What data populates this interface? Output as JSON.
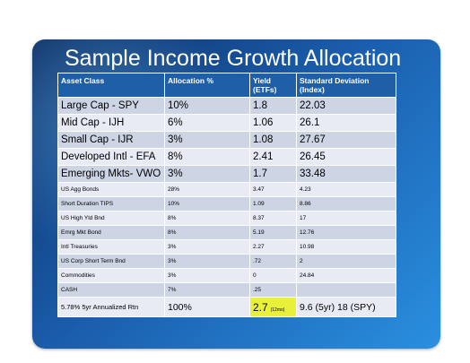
{
  "title": "Sample Income Growth Allocation",
  "headers": {
    "asset": "Asset Class",
    "allocation": "Allocation %",
    "yield": "Yield\n(ETFs)",
    "stddev": "Standard Deviation\n(Index)"
  },
  "rows": [
    {
      "asset": "Large Cap - SPY",
      "allocation": "10%",
      "yield": "1.8",
      "stddev": "22.03"
    },
    {
      "asset": "Mid Cap - IJH",
      "allocation": "6%",
      "yield": "1.06",
      "stddev": "26.1"
    },
    {
      "asset": "Small Cap - IJR",
      "allocation": "3%",
      "yield": "1.08",
      "stddev": "27.67"
    },
    {
      "asset": "Developed Intl - EFA",
      "allocation": "8%",
      "yield": "2.41",
      "stddev": "26.45"
    },
    {
      "asset": "Emerging Mkts- VWO",
      "allocation": "3%",
      "yield": "1.7",
      "stddev": "33.48"
    },
    {
      "asset": "US Agg Bonds",
      "allocation": "28%",
      "yield": "3.47",
      "stddev": "4.23"
    },
    {
      "asset": "Short Duration TIPS",
      "allocation": "10%",
      "yield": "1.09",
      "stddev": "8.86"
    },
    {
      "asset": "US High Yld Bnd",
      "allocation": "8%",
      "yield": "8.37",
      "stddev": "17"
    },
    {
      "asset": "Emrg Mkt Bond",
      "allocation": "8%",
      "yield": "5.19",
      "stddev": "12.76"
    },
    {
      "asset": "Intl Treasuries",
      "allocation": "3%",
      "yield": "2.27",
      "stddev": "10.98"
    },
    {
      "asset": "US Corp Short Term Bnd",
      "allocation": "3%",
      "yield": ".72",
      "stddev": "2"
    },
    {
      "asset": "Commodities",
      "allocation": "3%",
      "yield": "0",
      "stddev": "24.84"
    },
    {
      "asset": "CASH",
      "allocation": "7%",
      "yield": ".25",
      "stddev": ""
    }
  ],
  "total": {
    "asset": "5.78% 5yr Annualized Rtn",
    "allocation": "100%",
    "yield": "2.7",
    "yield_note": "(12mo)",
    "stddev": "9.6 (5yr) 18 (SPY)"
  },
  "colors": {
    "header_bg": "#1f5fa8",
    "row_dark": "#cdd5e5",
    "row_light": "#e8ebf4",
    "highlight": "#e8f03a"
  }
}
